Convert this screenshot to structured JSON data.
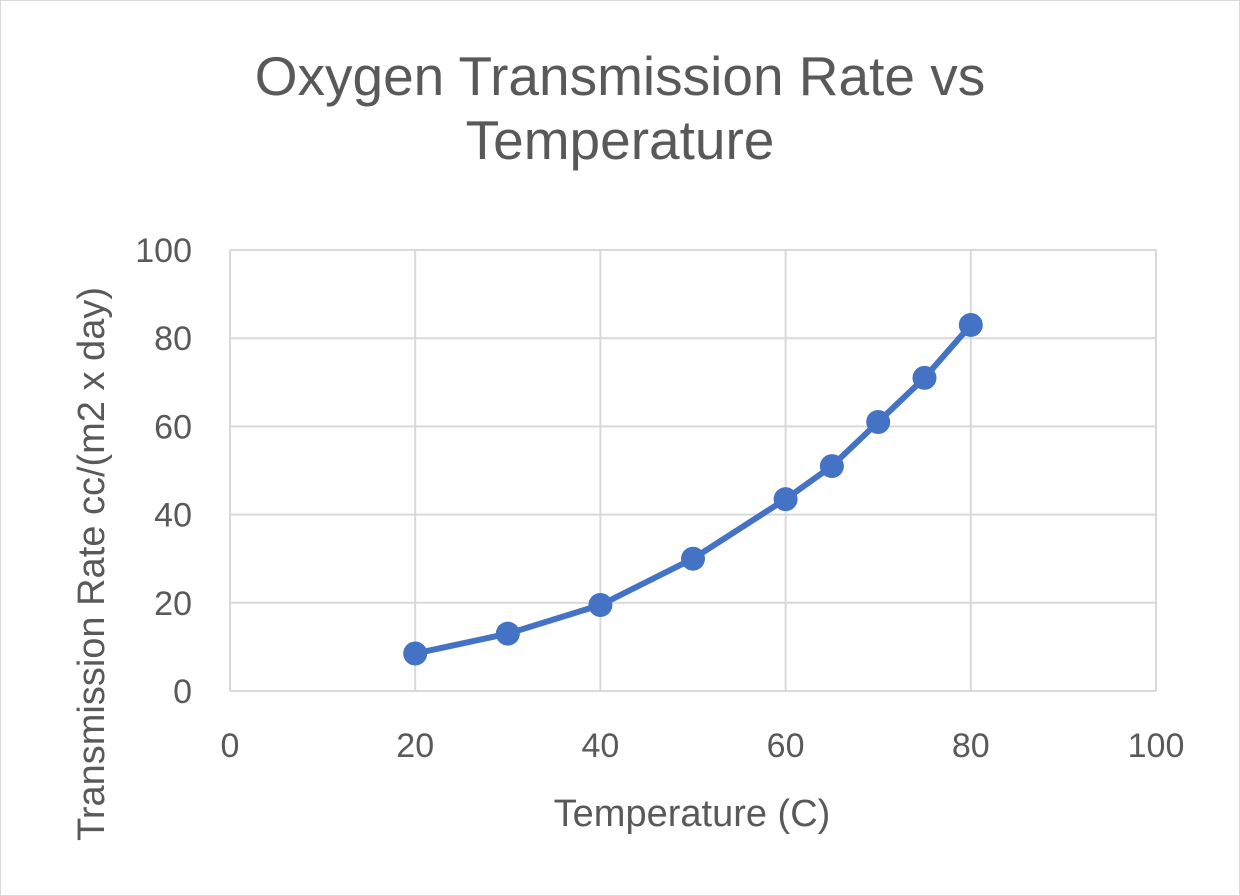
{
  "chart_data": {
    "type": "line",
    "title_lines": [
      "Oxygen Transmission Rate vs",
      "Temperature"
    ],
    "xlabel": "Temperature (C)",
    "ylabel": "Transmission Rate cc/(m2 x day)",
    "xlim": [
      0,
      100
    ],
    "ylim": [
      0,
      100
    ],
    "x_ticks": [
      0,
      20,
      40,
      60,
      80,
      100
    ],
    "y_ticks": [
      0,
      20,
      40,
      60,
      80,
      100
    ],
    "grid": true,
    "legend": "none",
    "series": [
      {
        "name": "Transmission Rate",
        "color": "#4472c4",
        "marker": "circle",
        "points": [
          {
            "x": 20,
            "y": 8.5
          },
          {
            "x": 30,
            "y": 13
          },
          {
            "x": 40,
            "y": 19.5
          },
          {
            "x": 50,
            "y": 30
          },
          {
            "x": 60,
            "y": 43.5
          },
          {
            "x": 65,
            "y": 51
          },
          {
            "x": 70,
            "y": 61
          },
          {
            "x": 75,
            "y": 71
          },
          {
            "x": 80,
            "y": 83
          }
        ]
      }
    ]
  },
  "colors": {
    "gridline": "#d9d9d9",
    "text": "#595959",
    "series": "#4472c4"
  }
}
